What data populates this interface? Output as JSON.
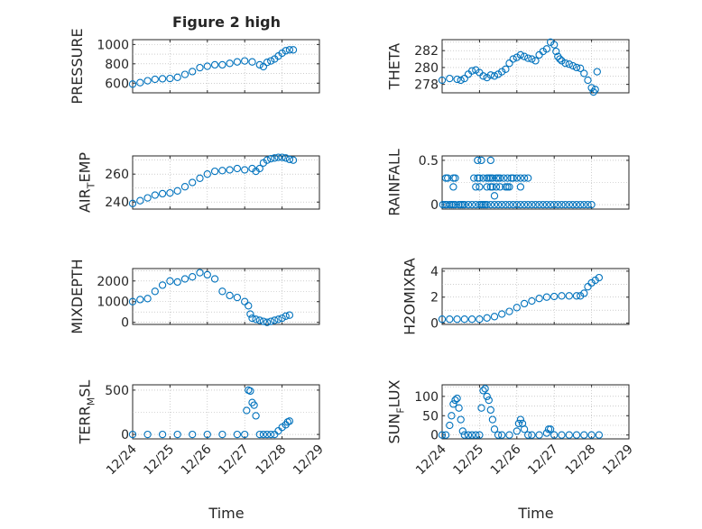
{
  "figure_title": "Figure 2 high",
  "chart_data": [
    {
      "id": "pressure",
      "type": "scatter",
      "ylabel_parts": [
        "PRESSURE"
      ],
      "ylim": [
        500,
        1050
      ],
      "yticks": [
        600,
        800,
        1000
      ],
      "x": [
        0,
        0.2,
        0.4,
        0.6,
        0.8,
        1.0,
        1.2,
        1.4,
        1.6,
        1.8,
        2.0,
        2.2,
        2.4,
        2.6,
        2.8,
        3.0,
        3.2,
        3.4,
        3.5,
        3.6,
        3.7,
        3.8,
        3.9,
        4.0,
        4.1,
        4.2,
        4.3
      ],
      "y": [
        590,
        605,
        625,
        640,
        645,
        648,
        660,
        690,
        720,
        760,
        775,
        790,
        790,
        805,
        820,
        830,
        820,
        790,
        770,
        815,
        830,
        850,
        880,
        910,
        935,
        945,
        945
      ]
    },
    {
      "id": "theta",
      "type": "scatter",
      "ylabel_parts": [
        "THETA"
      ],
      "ylim": [
        277,
        283.3
      ],
      "yticks": [
        278,
        280,
        282
      ],
      "x": [
        0,
        0.2,
        0.4,
        0.5,
        0.6,
        0.7,
        0.8,
        0.9,
        1.0,
        1.1,
        1.2,
        1.3,
        1.4,
        1.5,
        1.6,
        1.7,
        1.8,
        1.9,
        2.0,
        2.1,
        2.2,
        2.3,
        2.4,
        2.5,
        2.6,
        2.7,
        2.8,
        2.9,
        3.0,
        3.05,
        3.1,
        3.15,
        3.2,
        3.3,
        3.4,
        3.5,
        3.6,
        3.7,
        3.8,
        3.9,
        4.0,
        4.05,
        4.1,
        4.15
      ],
      "y": [
        278.5,
        278.7,
        278.6,
        278.5,
        278.7,
        279.2,
        279.6,
        279.7,
        279.4,
        279,
        278.8,
        279.1,
        279,
        279.2,
        279.5,
        279.8,
        280.5,
        281,
        281.2,
        281.5,
        281.3,
        281.1,
        281,
        280.8,
        281.5,
        281.9,
        282.2,
        283,
        282.7,
        281.9,
        281.3,
        281,
        280.8,
        280.5,
        280.4,
        280.2,
        280,
        279.9,
        279.3,
        278.5,
        277.6,
        277.1,
        277.4,
        279.5
      ]
    },
    {
      "id": "air_temp",
      "type": "scatter",
      "ylabel_parts": [
        "AIR",
        "T",
        "EMP"
      ],
      "ylim": [
        235,
        273
      ],
      "yticks": [
        240,
        260
      ],
      "x": [
        0,
        0.2,
        0.4,
        0.6,
        0.8,
        1.0,
        1.2,
        1.4,
        1.6,
        1.8,
        2.0,
        2.2,
        2.4,
        2.6,
        2.8,
        3.0,
        3.2,
        3.3,
        3.4,
        3.5,
        3.6,
        3.7,
        3.8,
        3.9,
        4.0,
        4.1,
        4.2,
        4.3
      ],
      "y": [
        239,
        241,
        243,
        245,
        246,
        246.5,
        248,
        251,
        254,
        257,
        260,
        262,
        262.5,
        263,
        264,
        263,
        264,
        262,
        264,
        268,
        270,
        271,
        271.5,
        272,
        272,
        271.5,
        270.5,
        270
      ]
    },
    {
      "id": "rainfall",
      "type": "scatter",
      "ylabel_parts": [
        "RAINFALL"
      ],
      "ylim": [
        -0.05,
        0.55
      ],
      "yticks": [
        0,
        0.5
      ],
      "x": [
        0.02,
        0.08,
        0.12,
        0.2,
        0.25,
        0.3,
        0.35,
        0.45,
        0.5,
        0.55,
        0.6,
        0.7,
        0.8,
        0.9,
        1.0,
        1.05,
        1.1,
        1.15,
        1.2,
        1.3,
        1.4,
        1.5,
        1.6,
        1.7,
        1.8,
        1.9,
        2.0,
        2.1,
        2.2,
        2.3,
        2.4,
        2.5,
        2.6,
        2.7,
        2.8,
        2.9,
        3.0,
        3.1,
        3.2,
        3.3,
        3.4,
        3.5,
        3.6,
        3.7,
        3.8,
        3.9,
        4.0,
        0.1,
        0.15,
        0.3,
        0.35,
        0.85,
        0.95,
        1.0,
        1.1,
        1.2,
        1.25,
        1.3,
        1.35,
        1.45,
        1.55,
        1.65,
        1.75,
        1.85,
        1.9,
        2.0,
        2.1,
        2.2,
        2.3,
        0.3,
        0.9,
        1.0,
        1.2,
        1.3,
        1.35,
        1.45,
        1.55,
        1.7,
        1.8,
        2.1,
        0.95,
        1.05,
        1.3,
        1.5,
        1.75,
        1.4
      ],
      "y": [
        0,
        0,
        0,
        0,
        0,
        0,
        0,
        0,
        0,
        0,
        0,
        0,
        0,
        0,
        0,
        0,
        0,
        0,
        0,
        0,
        0,
        0,
        0,
        0,
        0,
        0,
        0,
        0,
        0,
        0,
        0,
        0,
        0,
        0,
        0,
        0,
        0,
        0,
        0,
        0,
        0,
        0,
        0,
        0,
        0,
        0,
        0,
        0.3,
        0.3,
        0.3,
        0.3,
        0.3,
        0.3,
        0.3,
        0.3,
        0.3,
        0.3,
        0.3,
        0.3,
        0.3,
        0.3,
        0.3,
        0.3,
        0.3,
        0.3,
        0.3,
        0.3,
        0.3,
        0.3,
        0.2,
        0.2,
        0.2,
        0.2,
        0.2,
        0.2,
        0.2,
        0.2,
        0.2,
        0.2,
        0.2,
        0.5,
        0.5,
        0.5,
        0.3,
        0.2,
        0.1
      ]
    },
    {
      "id": "mixdepth",
      "type": "scatter",
      "ylabel_parts": [
        "MIXDEPTH"
      ],
      "ylim": [
        -100,
        2600
      ],
      "yticks": [
        0,
        1000,
        2000
      ],
      "x": [
        0,
        0.2,
        0.4,
        0.6,
        0.8,
        1.0,
        1.2,
        1.4,
        1.6,
        1.8,
        2.0,
        2.2,
        2.4,
        2.6,
        2.8,
        3.0,
        3.1,
        3.15,
        3.2,
        3.3,
        3.4,
        3.5,
        3.6,
        3.7,
        3.8,
        3.9,
        4.0,
        4.1,
        4.2
      ],
      "y": [
        1000,
        1100,
        1150,
        1500,
        1800,
        2000,
        1950,
        2100,
        2200,
        2400,
        2300,
        2100,
        1500,
        1300,
        1200,
        1000,
        800,
        400,
        200,
        150,
        100,
        50,
        0,
        50,
        100,
        150,
        200,
        300,
        350
      ]
    },
    {
      "id": "h2omixra",
      "type": "scatter",
      "ylabel_parts": [
        "H2OMIXRA"
      ],
      "ylim": [
        -0.1,
        4.2
      ],
      "yticks": [
        0,
        2,
        4
      ],
      "x": [
        0,
        0.2,
        0.4,
        0.6,
        0.8,
        1.0,
        1.2,
        1.4,
        1.6,
        1.8,
        2.0,
        2.2,
        2.4,
        2.6,
        2.8,
        3.0,
        3.2,
        3.4,
        3.6,
        3.7,
        3.8,
        3.9,
        4.0,
        4.1,
        4.2
      ],
      "y": [
        0.3,
        0.3,
        0.3,
        0.3,
        0.3,
        0.3,
        0.4,
        0.5,
        0.7,
        0.9,
        1.2,
        1.5,
        1.7,
        1.9,
        2,
        2.05,
        2.1,
        2.1,
        2.1,
        2.1,
        2.3,
        2.8,
        3.1,
        3.3,
        3.5
      ]
    },
    {
      "id": "terr_msl",
      "type": "scatter",
      "ylabel_parts": [
        "TERR",
        "M",
        "SL"
      ],
      "ylim": [
        -50,
        560
      ],
      "yticks": [
        0,
        500
      ],
      "x": [
        0,
        0.4,
        0.8,
        1.2,
        1.6,
        2.0,
        2.4,
        2.8,
        3.0,
        3.05,
        3.1,
        3.15,
        3.2,
        3.25,
        3.3,
        3.4,
        3.5,
        3.6,
        3.7,
        3.8,
        3.9,
        4.0,
        4.1,
        4.15,
        4.2
      ],
      "y": [
        0,
        0,
        0,
        0,
        0,
        0,
        0,
        0,
        0,
        270,
        500,
        490,
        360,
        330,
        210,
        0,
        0,
        0,
        0,
        0,
        40,
        80,
        110,
        140,
        150
      ]
    },
    {
      "id": "sun_flux",
      "type": "scatter",
      "ylabel_parts": [
        "SUN",
        "F",
        "LUX"
      ],
      "ylim": [
        -10,
        130
      ],
      "yticks": [
        0,
        50,
        100
      ],
      "x": [
        0,
        0.1,
        0.2,
        0.25,
        0.3,
        0.35,
        0.4,
        0.45,
        0.5,
        0.55,
        0.6,
        0.7,
        0.8,
        0.9,
        1.0,
        1.05,
        1.1,
        1.15,
        1.2,
        1.25,
        1.3,
        1.35,
        1.4,
        1.5,
        1.6,
        1.8,
        2.0,
        2.05,
        2.1,
        2.15,
        2.2,
        2.3,
        2.4,
        2.6,
        2.8,
        2.85,
        2.9,
        3.0,
        3.2,
        3.4,
        3.6,
        3.8,
        4.0,
        4.2
      ],
      "y": [
        0,
        0,
        25,
        50,
        80,
        90,
        95,
        70,
        40,
        10,
        0,
        0,
        0,
        0,
        0,
        70,
        115,
        120,
        100,
        90,
        65,
        40,
        15,
        0,
        0,
        0,
        10,
        30,
        40,
        30,
        15,
        0,
        0,
        0,
        5,
        15,
        15,
        0,
        0,
        0,
        0,
        0,
        0,
        0
      ]
    }
  ],
  "x_axis": {
    "label": "Time",
    "ticks": [
      "12/24",
      "12/25",
      "12/26",
      "12/27",
      "12/28",
      "12/29"
    ],
    "tick_values": [
      0,
      1,
      2,
      3,
      4,
      5
    ],
    "xlim": [
      0,
      5
    ]
  }
}
